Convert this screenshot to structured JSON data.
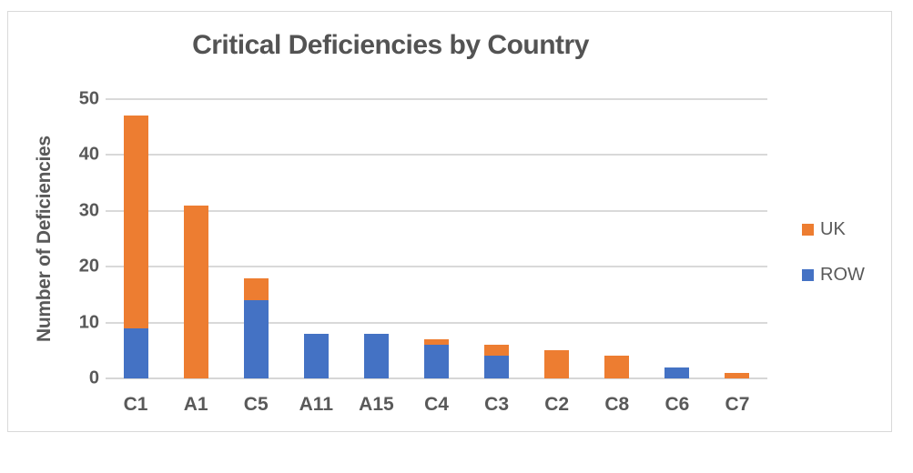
{
  "chart_data": {
    "type": "bar",
    "stacked": true,
    "title": "Critical Deficiencies by Country",
    "xlabel": "",
    "ylabel": "Number of Deficiencies",
    "categories": [
      "C1",
      "A1",
      "C5",
      "A11",
      "A15",
      "C4",
      "C3",
      "C2",
      "C8",
      "C6",
      "C7"
    ],
    "series": [
      {
        "name": "ROW",
        "color": "#4472C4",
        "values": [
          9,
          0,
          14,
          8,
          8,
          6,
          4,
          0,
          0,
          2,
          0
        ]
      },
      {
        "name": "UK",
        "color": "#ED7D31",
        "values": [
          38,
          31,
          4,
          0,
          0,
          1,
          2,
          5,
          4,
          0,
          1
        ]
      }
    ],
    "totals": [
      47,
      31,
      18,
      8,
      8,
      7,
      6,
      5,
      4,
      2,
      1
    ],
    "ylim": [
      0,
      50
    ],
    "yticks": [
      0,
      10,
      20,
      30,
      40,
      50
    ],
    "grid": true,
    "legend_position": "right",
    "legend_order": [
      "UK",
      "ROW"
    ]
  },
  "colors": {
    "uk_orange": "#ED7D31",
    "row_blue": "#4472C4",
    "text_gray": "#595959",
    "title_gray": "#535353",
    "gridline_gray": "#D9D9D9",
    "frame_border": "#D9D9D9",
    "background": "#FFFFFF"
  }
}
